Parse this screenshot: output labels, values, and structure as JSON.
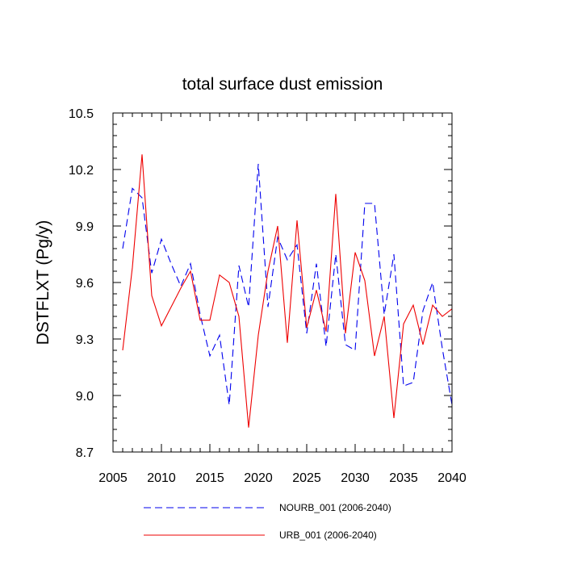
{
  "chart_data": {
    "type": "line",
    "title": "total surface dust emission",
    "xlabel": "",
    "ylabel": "DSTFLXT  (Pg/y)",
    "xlim": [
      2005,
      2040
    ],
    "ylim": [
      8.7,
      10.5
    ],
    "x_ticks": [
      2005,
      2010,
      2015,
      2020,
      2025,
      2030,
      2035,
      2040
    ],
    "x_tick_labels": [
      "2005",
      "2010",
      "2015",
      "2020",
      "2025",
      "2030",
      "2035",
      "2040"
    ],
    "y_ticks": [
      8.7,
      9.0,
      9.3,
      9.6,
      9.9,
      10.2,
      10.5
    ],
    "y_tick_labels": [
      "8.7",
      "9.0",
      "9.3",
      "9.6",
      "9.9",
      "10.2",
      "10.5"
    ],
    "x_minor_step": 1,
    "y_minor_step": 0.06,
    "legend_position": "bottom",
    "x": [
      2006,
      2007,
      2008,
      2009,
      2010,
      2011,
      2012,
      2013,
      2014,
      2015,
      2016,
      2017,
      2018,
      2019,
      2020,
      2021,
      2022,
      2023,
      2024,
      2025,
      2026,
      2027,
      2028,
      2029,
      2030,
      2031,
      2032,
      2033,
      2034,
      2035,
      2036,
      2037,
      2038,
      2039,
      2040
    ],
    "series": [
      {
        "name": "NOURB_001 (2006-2040)",
        "style": "dashed",
        "color": "#0000ee",
        "values": [
          9.78,
          10.1,
          10.05,
          9.65,
          9.83,
          9.7,
          9.58,
          9.7,
          9.43,
          9.21,
          9.32,
          8.95,
          9.69,
          9.47,
          10.23,
          9.47,
          9.84,
          9.72,
          9.8,
          9.33,
          9.7,
          9.26,
          9.75,
          9.27,
          9.24,
          10.02,
          10.02,
          9.43,
          9.75,
          9.05,
          9.07,
          9.45,
          9.6,
          9.25,
          8.95
        ]
      },
      {
        "name": "URB_001 (2006-2040)",
        "style": "solid",
        "color": "#ee0000",
        "values": [
          9.24,
          9.68,
          10.28,
          9.53,
          9.37,
          9.47,
          9.57,
          9.66,
          9.4,
          9.4,
          9.64,
          9.6,
          9.42,
          8.83,
          9.32,
          9.66,
          9.9,
          9.28,
          9.93,
          9.36,
          9.56,
          9.34,
          10.07,
          9.33,
          9.76,
          9.61,
          9.21,
          9.42,
          8.88,
          9.38,
          9.48,
          9.27,
          9.48,
          9.42,
          9.46
        ]
      }
    ]
  }
}
